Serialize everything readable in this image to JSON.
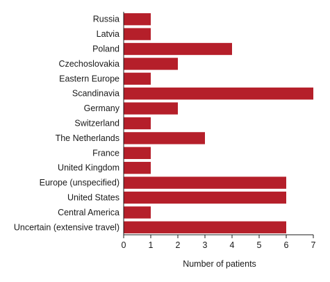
{
  "chart_data": {
    "type": "bar",
    "orientation": "horizontal",
    "categories": [
      "Russia",
      "Latvia",
      "Poland",
      "Czechoslovakia",
      "Eastern Europe",
      "Scandinavia",
      "Germany",
      "Switzerland",
      "The Netherlands",
      "France",
      "United Kingdom",
      "Europe (unspecified)",
      "United States",
      "Central America",
      "Uncertain (extensive travel)"
    ],
    "values": [
      1,
      1,
      4,
      2,
      1,
      7,
      2,
      1,
      3,
      1,
      1,
      6,
      6,
      1,
      6
    ],
    "xlabel": "Number of patients",
    "ylabel": "",
    "xlim": [
      0,
      7
    ],
    "xticks": [
      "0",
      "1",
      "2",
      "3",
      "4",
      "5",
      "6",
      "7"
    ],
    "grid": false,
    "bar_color": "#b51f2a"
  }
}
